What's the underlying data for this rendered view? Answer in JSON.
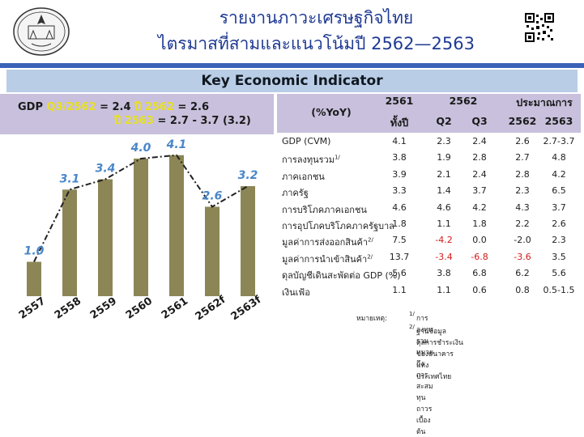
{
  "header": {
    "title_line1": "รายงานภาวะเศรษฐกิจไทย",
    "title_line2": "ไตรมาสที่สามและแนวโน้มปี 2562—2563",
    "seal_icon": "government-seal-icon",
    "qr_icon": "qr-code-icon"
  },
  "banner": {
    "title": "Key Economic Indicator"
  },
  "gdp_box": {
    "line1_prefix": "GDP ",
    "line1_q": "Q3/2562",
    "line1_eq1": " = 2.4 ",
    "line1_y_label": "ปี 2562",
    "line1_eq2": " = 2.6",
    "line2_y_label": "ปี 2563",
    "line2_eq": " = 2.7 - 3.7 (3.2)"
  },
  "chart_data": {
    "type": "bar",
    "categories": [
      "2557",
      "2558",
      "2559",
      "2560",
      "2561",
      "2562f",
      "2563f"
    ],
    "values": [
      1.0,
      3.1,
      3.4,
      4.0,
      4.1,
      2.6,
      3.2
    ],
    "value_labels": [
      "1.0",
      "3.1",
      "3.4",
      "4.0",
      "4.1",
      "2.6",
      "3.2"
    ],
    "line_overlay": "dash-dot connecting bar values",
    "bar_color": "#8c8656",
    "label_color": "#4a86c8",
    "title": "",
    "xlabel": "",
    "ylabel": ""
  },
  "table": {
    "header_label": "(%YoY)",
    "group_2561": "2561",
    "group_2562": "2562",
    "group_forecast": "ประมาณการ",
    "sub_full_year": "ทั้งปี",
    "sub_q2": "Q2",
    "sub_q3": "Q3",
    "sub_2562": "2562",
    "sub_2563": "2563",
    "rows": [
      {
        "label": "GDP (CVM)",
        "sup": "",
        "v": [
          "4.1",
          "2.3",
          "2.4",
          "2.6",
          "2.7-3.7"
        ],
        "neg": [
          false,
          false,
          false,
          false,
          false
        ]
      },
      {
        "label": "การลงทุนรวม",
        "sup": "1/",
        "v": [
          "3.8",
          "1.9",
          "2.8",
          "2.7",
          "4.8"
        ],
        "neg": [
          false,
          false,
          false,
          false,
          false
        ]
      },
      {
        "label": "   ภาคเอกชน",
        "sup": "",
        "v": [
          "3.9",
          "2.1",
          "2.4",
          "2.8",
          "4.2"
        ],
        "neg": [
          false,
          false,
          false,
          false,
          false
        ]
      },
      {
        "label": "   ภาครัฐ",
        "sup": "",
        "v": [
          "3.3",
          "1.4",
          "3.7",
          "2.3",
          "6.5"
        ],
        "neg": [
          false,
          false,
          false,
          false,
          false
        ]
      },
      {
        "label": "การบริโภคภาคเอกชน",
        "sup": "",
        "v": [
          "4.6",
          "4.6",
          "4.2",
          "4.3",
          "3.7"
        ],
        "neg": [
          false,
          false,
          false,
          false,
          false
        ]
      },
      {
        "label": "การอุปโภคบริโภคภาครัฐบาล",
        "sup": "",
        "v": [
          "1.8",
          "1.1",
          "1.8",
          "2.2",
          "2.6"
        ],
        "neg": [
          false,
          false,
          false,
          false,
          false
        ]
      },
      {
        "label": "มูลค่าการส่งออกสินค้า",
        "sup": "2/",
        "v": [
          "7.5",
          "-4.2",
          "0.0",
          "-2.0",
          "2.3"
        ],
        "neg": [
          false,
          true,
          false,
          false,
          false
        ]
      },
      {
        "label": "มูลค่าการนำเข้าสินค้า",
        "sup": "2/",
        "v": [
          "13.7",
          "-3.4",
          "-6.8",
          "-3.6",
          "3.5"
        ],
        "neg": [
          false,
          true,
          true,
          true,
          false
        ]
      },
      {
        "label": "ดุลบัญชีเดินสะพัดต่อ GDP (%)",
        "sup": "",
        "v": [
          "5.6",
          "3.8",
          "6.8",
          "6.2",
          "5.6"
        ],
        "neg": [
          false,
          false,
          false,
          false,
          false
        ]
      },
      {
        "label": "เงินเฟ้อ",
        "sup": "",
        "v": [
          "1.1",
          "1.1",
          "0.6",
          "0.8",
          "0.5-1.5"
        ],
        "neg": [
          false,
          false,
          false,
          false,
          false
        ]
      }
    ]
  },
  "notes": {
    "label": "หมายเหตุ:",
    "n1_mark": "1/",
    "n1": " การลงทุนรวม หมายถึง การสะสมทุนถาวรเบื้องต้น",
    "n2_mark": "2/",
    "n2": " ฐานข้อมูลดุลการชำระเงินของธนาคารแห่งประเทศไทย"
  }
}
